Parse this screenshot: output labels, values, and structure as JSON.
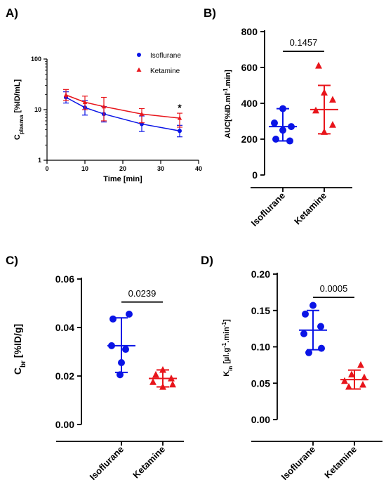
{
  "colors": {
    "isoflurane": "#0a14e6",
    "ketamine": "#e8151b",
    "axis": "#000000"
  },
  "chart_data": [
    {
      "panel": "A)",
      "type": "line",
      "yscale": "log",
      "xlabel": "Time [min]",
      "ylabel_main": "C",
      "ylabel_sub": "plasma",
      "ylabel_unit": " [%ID/mL]",
      "xlim": [
        0,
        40
      ],
      "ylim": [
        1,
        100
      ],
      "xticks": [
        0,
        10,
        20,
        30,
        40
      ],
      "yticks": [
        1,
        10,
        100
      ],
      "x": [
        5,
        10,
        15,
        25,
        35
      ],
      "series": [
        {
          "name": "Isoflurane",
          "color": "#0a14e6",
          "marker": "circle",
          "values": [
            17.5,
            11,
            8.2,
            5.2,
            3.8
          ],
          "err_low": [
            13.5,
            7.8,
            5.7,
            3.7,
            2.9
          ],
          "err_high": [
            22.5,
            15,
            11.5,
            7.5,
            4.9
          ]
        },
        {
          "name": "Ketamine",
          "color": "#e8151b",
          "marker": "triangle",
          "values": [
            19.5,
            14,
            11.5,
            8.2,
            6.8
          ],
          "err_low": [
            15,
            10,
            6,
            5.5,
            4.5
          ],
          "err_high": [
            25,
            18.5,
            17.5,
            10.5,
            8.5
          ]
        }
      ],
      "legend_position": "top-right",
      "annotations": [
        {
          "text": "*",
          "x": 35,
          "y": 11
        }
      ]
    },
    {
      "panel": "B)",
      "type": "scatter",
      "ylabel_main": "AUC[%ID.ml",
      "ylabel_sup1": "-1",
      "ylabel_mid": ".min]",
      "ylim": [
        0,
        800
      ],
      "yticks": [
        0,
        200,
        400,
        600,
        800
      ],
      "categories": [
        "Isoflurane",
        "Ketamine"
      ],
      "groups": [
        {
          "name": "Isoflurane",
          "color": "#0a14e6",
          "marker": "circle",
          "points": [
            370,
            290,
            270,
            250,
            200,
            190
          ],
          "mean": 270,
          "sd_low": 190,
          "sd_high": 370
        },
        {
          "name": "Ketamine",
          "color": "#e8151b",
          "marker": "triangle",
          "points": [
            610,
            460,
            420,
            360,
            280,
            240
          ],
          "mean": 365,
          "sd_low": 230,
          "sd_high": 500
        }
      ],
      "comparison": {
        "label": "0.1457",
        "y": 690
      }
    },
    {
      "panel": "C)",
      "type": "scatter",
      "ylabel_main": "C",
      "ylabel_sub": "br",
      "ylabel_unit": " [%ID/g]",
      "ylim": [
        0,
        0.06
      ],
      "yticks": [
        0.0,
        0.02,
        0.04,
        0.06
      ],
      "ytick_labels": [
        "0.00",
        "0.02",
        "0.04",
        "0.06"
      ],
      "categories": [
        "Isoflurane",
        "Ketamine"
      ],
      "groups": [
        {
          "name": "Isoflurane",
          "color": "#0a14e6",
          "marker": "circle",
          "points": [
            0.0455,
            0.0435,
            0.0325,
            0.031,
            0.0255,
            0.0205
          ],
          "mean": 0.0325,
          "sd_low": 0.0215,
          "sd_high": 0.044
        },
        {
          "name": "Ketamine",
          "color": "#e8151b",
          "marker": "triangle",
          "points": [
            0.0225,
            0.0205,
            0.019,
            0.0175,
            0.0165,
            0.0155
          ],
          "mean": 0.019,
          "sd_low": 0.0155,
          "sd_high": 0.0225
        }
      ],
      "comparison": {
        "label": "0.0239",
        "y": 0.0505
      }
    },
    {
      "panel": "D)",
      "type": "scatter",
      "ylabel_main": "K",
      "ylabel_sub": "in",
      "ylabel_unit": " [µl.g",
      "ylabel_sup1": "-1",
      "ylabel_mid": ".min",
      "ylabel_sup2": "-1",
      "ylabel_end": "]",
      "ylim": [
        0,
        0.2
      ],
      "yticks": [
        0.0,
        0.05,
        0.1,
        0.15,
        0.2
      ],
      "ytick_labels": [
        "0.00",
        "0.05",
        "0.10",
        "0.15",
        "0.20"
      ],
      "categories": [
        "Isoflurane",
        "Ketamine"
      ],
      "groups": [
        {
          "name": "Isoflurane",
          "color": "#0a14e6",
          "marker": "circle",
          "points": [
            0.157,
            0.145,
            0.128,
            0.118,
            0.098,
            0.092
          ],
          "mean": 0.123,
          "sd_low": 0.096,
          "sd_high": 0.15
        },
        {
          "name": "Ketamine",
          "color": "#e8151b",
          "marker": "triangle",
          "points": [
            0.075,
            0.062,
            0.058,
            0.053,
            0.048,
            0.045
          ],
          "mean": 0.055,
          "sd_low": 0.042,
          "sd_high": 0.068
        }
      ],
      "comparison": {
        "label": "0.0005",
        "y": 0.168
      }
    }
  ]
}
